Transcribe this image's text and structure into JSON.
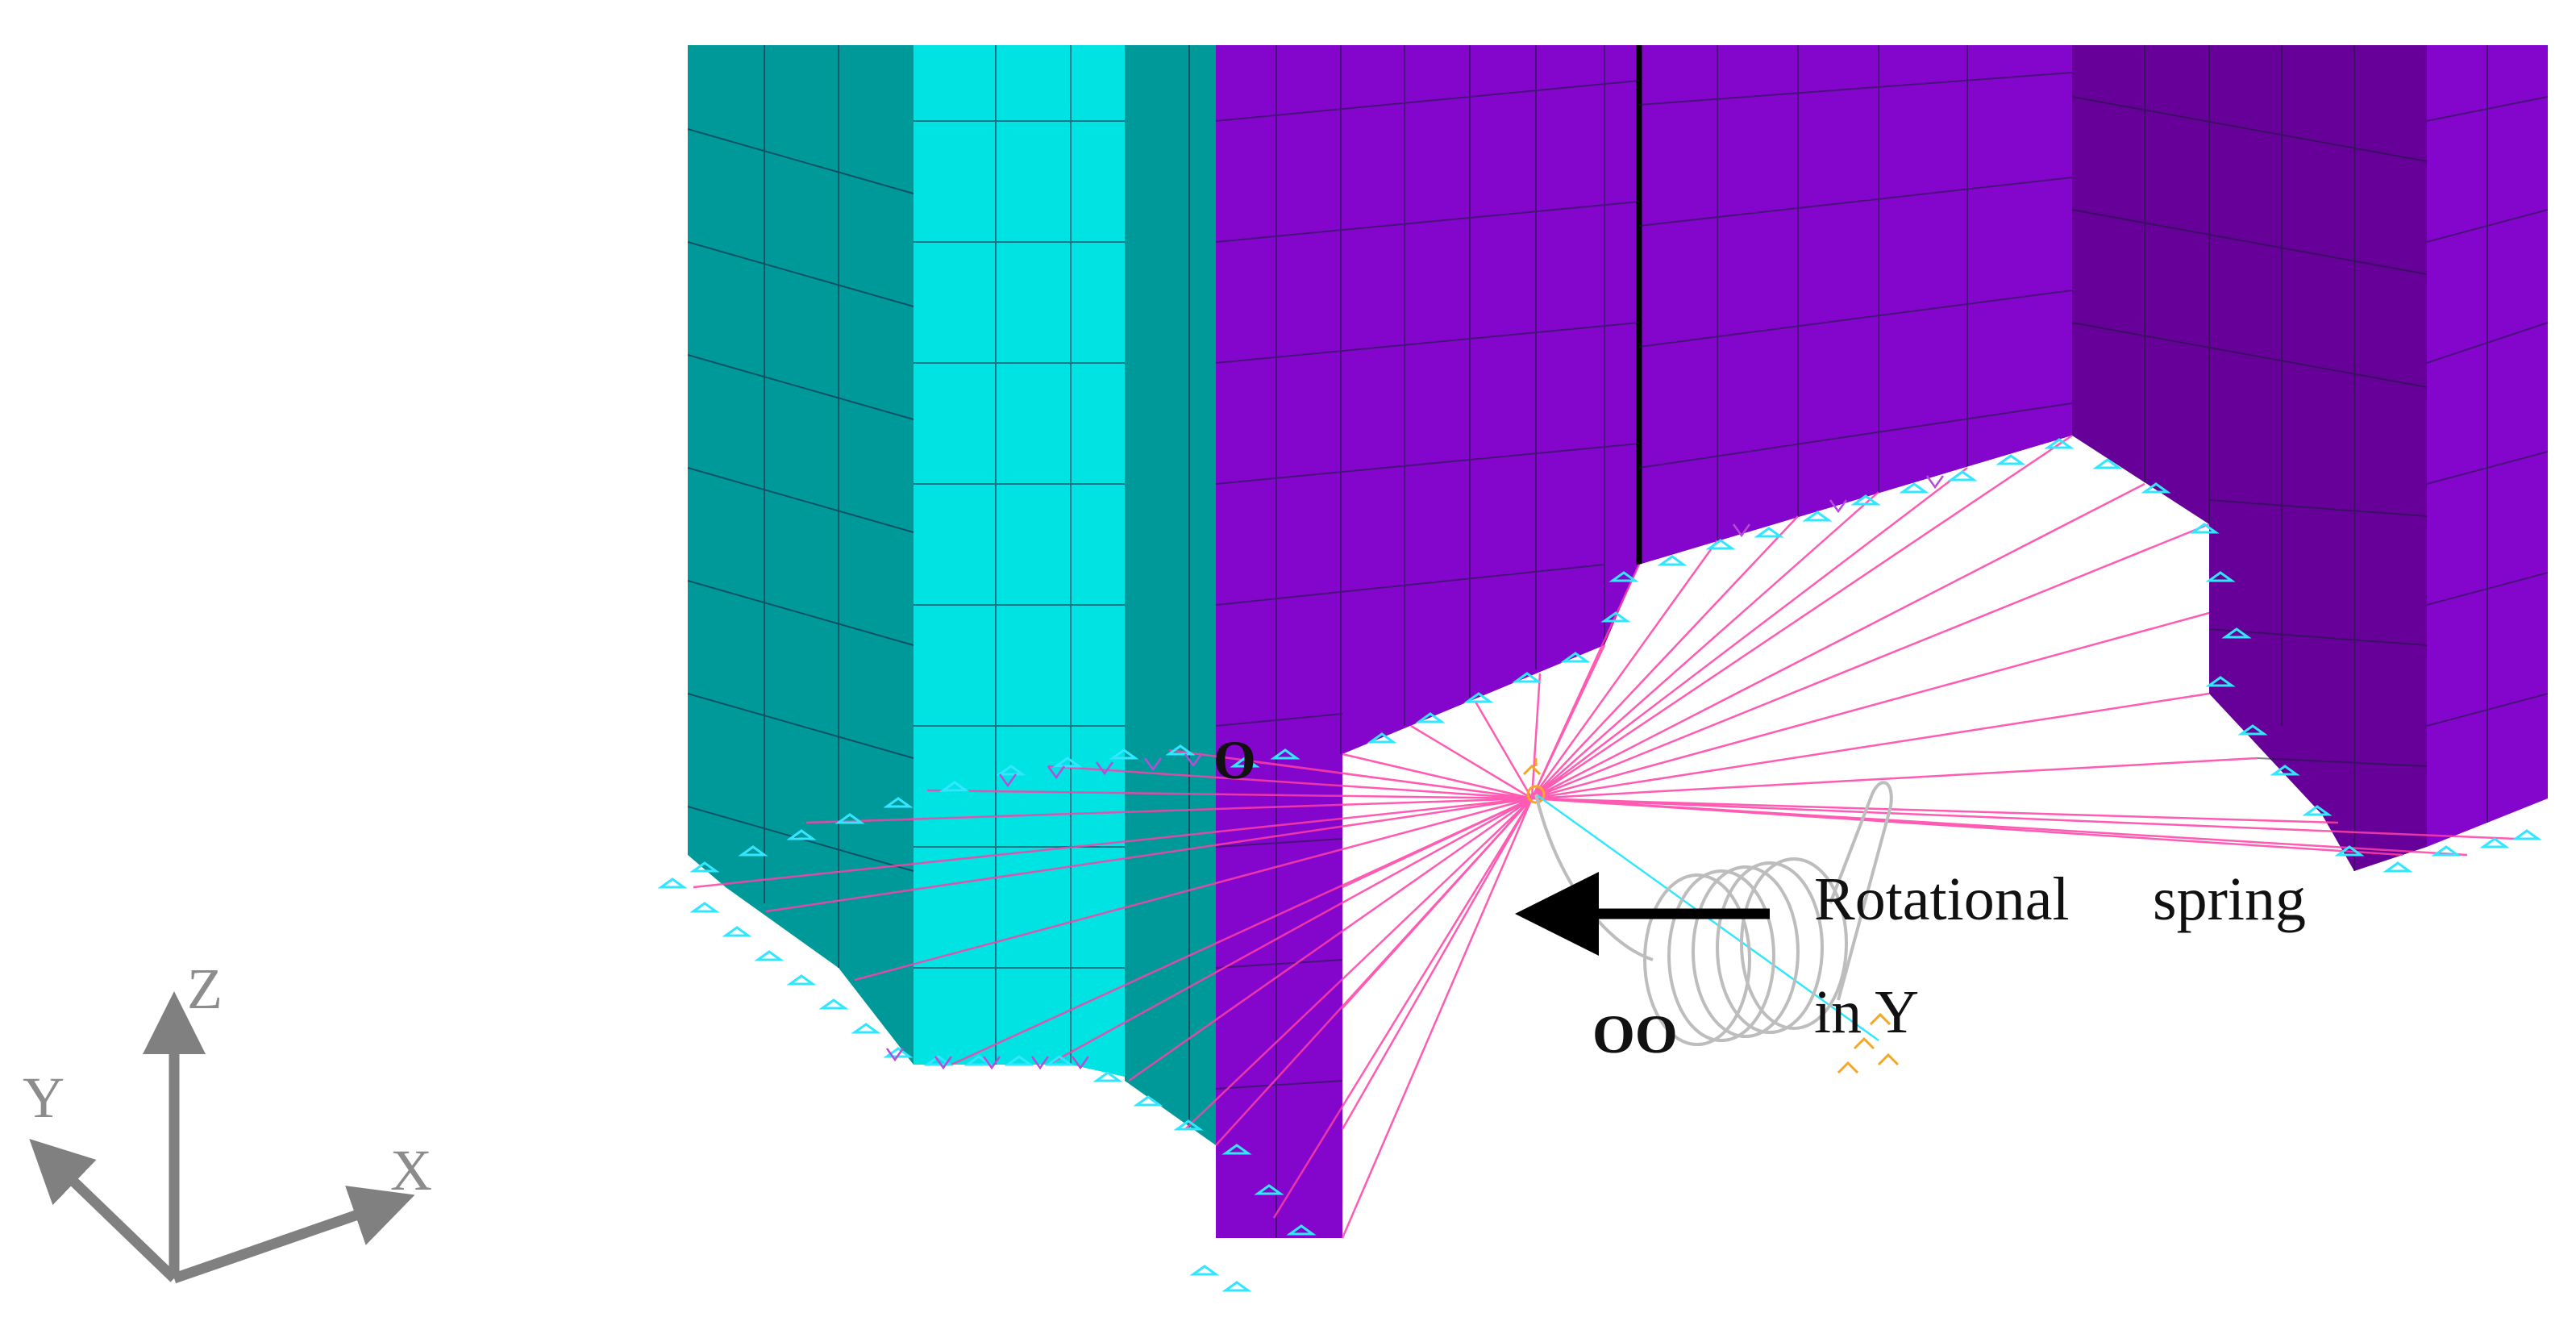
{
  "labels": {
    "point_o": "O",
    "point_oo": "OO",
    "spring_line1_a": "Rotational",
    "spring_line1_b": "spring",
    "spring_line2": "in Y"
  },
  "axes": {
    "z": "Z",
    "y": "Y",
    "x": "X"
  },
  "colors": {
    "teal_dark": "#009999",
    "cyan_light": "#00e3e3",
    "purple": "#8406cc",
    "purple_dark": "#660099",
    "rigid_links": "#ff3ea5",
    "constraint_marks": "#33e6ff",
    "spring": "#bdbdbd",
    "axis_triad": "#808080",
    "arrow": "#000000"
  }
}
